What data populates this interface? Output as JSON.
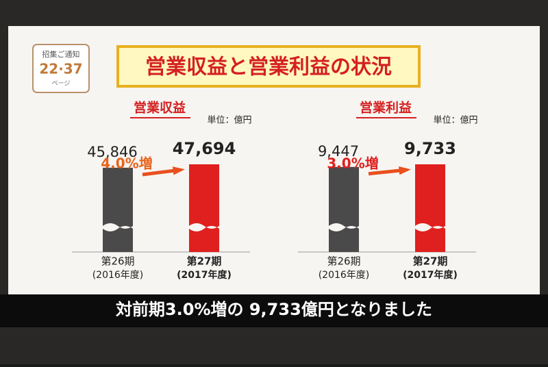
{
  "badge": {
    "label": "招集ご通知",
    "pages": "22·37",
    "unit": "ページ"
  },
  "title": "営業収益と営業利益の状況",
  "chart_data": [
    {
      "type": "bar",
      "title": "営業収益",
      "unit": "単位：億円",
      "annotation": "4.0%増",
      "categories": [
        "第26期",
        "第27期"
      ],
      "category_years": [
        "(2016年度)",
        "(2017年度)"
      ],
      "values": [
        45846,
        47694
      ],
      "value_labels": [
        "45,846",
        "47,694"
      ],
      "colors": [
        "#4a4a4a",
        "#e0201e"
      ],
      "annotation_color": "#e8641e"
    },
    {
      "type": "bar",
      "title": "営業利益",
      "unit": "単位：億円",
      "annotation": "3.0%増",
      "categories": [
        "第26期",
        "第27期"
      ],
      "category_years": [
        "(2016年度)",
        "(2017年度)"
      ],
      "values": [
        9447,
        9733
      ],
      "value_labels": [
        "9,447",
        "9,733"
      ],
      "colors": [
        "#4a4a4a",
        "#e0201e"
      ],
      "annotation_color": "#e0201e"
    }
  ],
  "caption": "対前期3.0%増の 9,733億円となりました"
}
